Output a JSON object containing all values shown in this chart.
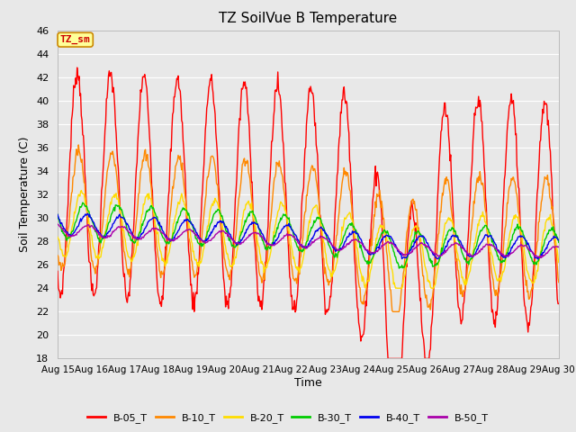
{
  "title": "TZ SoilVue B Temperature",
  "xlabel": "Time",
  "ylabel": "Soil Temperature (C)",
  "ylim": [
    18,
    46
  ],
  "yticks": [
    18,
    20,
    22,
    24,
    26,
    28,
    30,
    32,
    34,
    36,
    38,
    40,
    42,
    44,
    46
  ],
  "xtick_labels": [
    "Aug 15",
    "Aug 16",
    "Aug 17",
    "Aug 18",
    "Aug 19",
    "Aug 20",
    "Aug 21",
    "Aug 22",
    "Aug 23",
    "Aug 24",
    "Aug 25",
    "Aug 26",
    "Aug 27",
    "Aug 28",
    "Aug 29",
    "Aug 30"
  ],
  "series_colors": {
    "B-05_T": "#ff0000",
    "B-10_T": "#ff8800",
    "B-20_T": "#ffdd00",
    "B-30_T": "#00cc00",
    "B-40_T": "#0000ee",
    "B-50_T": "#aa00aa"
  },
  "legend_label": "TZ_sm",
  "legend_box_facecolor": "#ffff99",
  "legend_box_edgecolor": "#cc8800",
  "bg_color": "#e8e8e8",
  "grid_color": "#ffffff",
  "title_fontsize": 11,
  "axis_label_fontsize": 9,
  "tick_fontsize": 8
}
